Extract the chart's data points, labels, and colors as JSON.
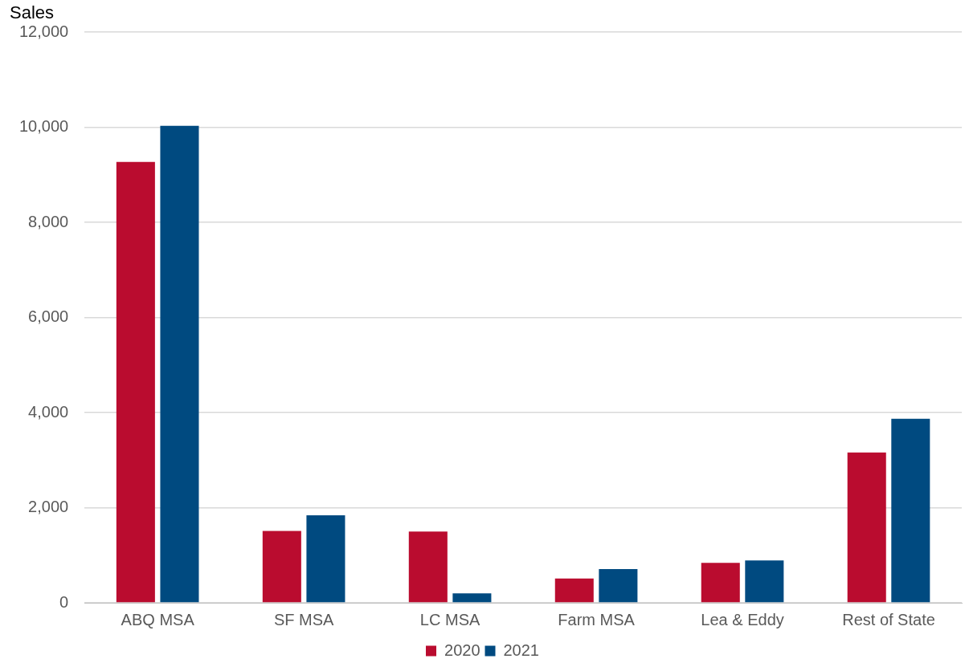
{
  "chart_data": {
    "type": "bar",
    "ylabel": "Sales",
    "categories": [
      "ABQ MSA",
      "SF MSA",
      "LC MSA",
      "Farm MSA",
      "Lea & Eddy",
      "Rest of State"
    ],
    "series": [
      {
        "name": "2020",
        "color": "#ba0c2f",
        "values": [
          9270,
          1510,
          1500,
          510,
          840,
          3160
        ]
      },
      {
        "name": "2021",
        "color": "#004a80",
        "values": [
          10030,
          1840,
          200,
          710,
          890,
          3870
        ]
      }
    ],
    "ylim": [
      0,
      12000
    ],
    "yticks": [
      {
        "value": 0,
        "label": "0"
      },
      {
        "value": 2000,
        "label": "2,000"
      },
      {
        "value": 4000,
        "label": "4,000"
      },
      {
        "value": 6000,
        "label": "6,000"
      },
      {
        "value": 8000,
        "label": "8,000"
      },
      {
        "value": 10000,
        "label": "10,000"
      },
      {
        "value": 12000,
        "label": "12,000"
      }
    ],
    "grid": "y",
    "legend": "bottom"
  }
}
